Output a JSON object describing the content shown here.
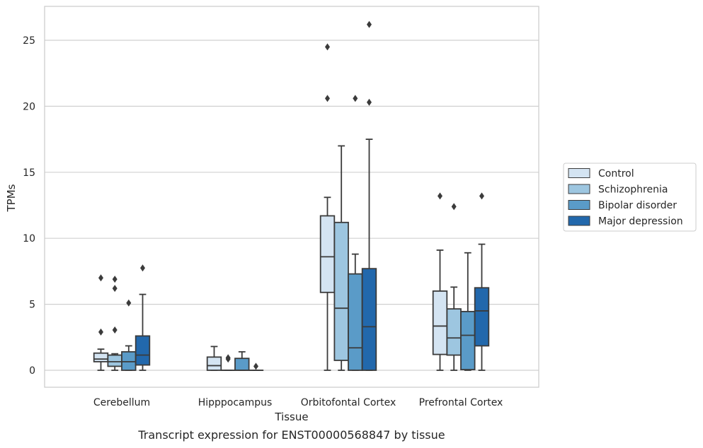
{
  "chart_data": {
    "type": "box",
    "title": "Transcript expression for ENST00000568847 by tissue",
    "xlabel": "Tissue",
    "ylabel": "TPMs",
    "ylim": [
      -1.2,
      27.3
    ],
    "yticks": [
      0,
      5,
      10,
      15,
      20,
      25
    ],
    "grid": "horizontal",
    "legend_position": "right",
    "categories": [
      "Cerebellum",
      "Hipppocampus",
      "Orbitofontal Cortex",
      "Prefrontal Cortex"
    ],
    "series": [
      {
        "name": "Control",
        "color": "#d4e4f2",
        "boxes": [
          {
            "whisker_low": 0.0,
            "q1": 0.65,
            "median": 0.85,
            "q3": 1.3,
            "whisker_high": 1.6,
            "outliers": [
              2.9,
              7.0
            ]
          },
          {
            "whisker_low": 0.0,
            "q1": 0.0,
            "median": 0.35,
            "q3": 1.0,
            "whisker_high": 1.8,
            "outliers": []
          },
          {
            "whisker_low": 0.0,
            "q1": 5.9,
            "median": 8.6,
            "q3": 11.7,
            "whisker_high": 13.1,
            "outliers": [
              20.6,
              24.5
            ]
          },
          {
            "whisker_low": 0.0,
            "q1": 1.2,
            "median": 3.35,
            "q3": 6.0,
            "whisker_high": 9.1,
            "outliers": [
              13.2
            ]
          }
        ]
      },
      {
        "name": "Schizophrenia",
        "color": "#9dc6e0",
        "boxes": [
          {
            "whisker_low": 0.0,
            "q1": 0.3,
            "median": 0.65,
            "q3": 1.15,
            "whisker_high": 1.25,
            "outliers": [
              3.05,
              6.2,
              6.9
            ]
          },
          {
            "whisker_low": 0.0,
            "q1": 0.0,
            "median": 0.0,
            "q3": 0.0,
            "whisker_high": 0.0,
            "outliers": [
              0.85,
              0.95
            ]
          },
          {
            "whisker_low": 0.0,
            "q1": 0.75,
            "median": 4.7,
            "q3": 11.2,
            "whisker_high": 17.0,
            "outliers": []
          },
          {
            "whisker_low": 0.0,
            "q1": 1.15,
            "median": 2.45,
            "q3": 4.65,
            "whisker_high": 6.3,
            "outliers": [
              12.4
            ]
          }
        ]
      },
      {
        "name": "Bipolar disorder",
        "color": "#5a9bc8",
        "boxes": [
          {
            "whisker_low": 0.0,
            "q1": 0.0,
            "median": 0.65,
            "q3": 1.4,
            "whisker_high": 1.85,
            "outliers": [
              5.1
            ]
          },
          {
            "whisker_low": 0.0,
            "q1": 0.0,
            "median": 0.0,
            "q3": 0.9,
            "whisker_high": 1.4,
            "outliers": []
          },
          {
            "whisker_low": 0.0,
            "q1": 0.0,
            "median": 1.7,
            "q3": 7.3,
            "whisker_high": 8.8,
            "outliers": [
              20.6
            ]
          },
          {
            "whisker_low": 0.0,
            "q1": 0.05,
            "median": 2.65,
            "q3": 4.45,
            "whisker_high": 8.9,
            "outliers": []
          }
        ]
      },
      {
        "name": "Major depression",
        "color": "#2268ac",
        "boxes": [
          {
            "whisker_low": 0.0,
            "q1": 0.4,
            "median": 1.15,
            "q3": 2.6,
            "whisker_high": 5.75,
            "outliers": [
              7.75
            ]
          },
          {
            "whisker_low": 0.0,
            "q1": 0.0,
            "median": 0.0,
            "q3": 0.0,
            "whisker_high": 0.0,
            "outliers": [
              0.3
            ]
          },
          {
            "whisker_low": 0.0,
            "q1": 0.0,
            "median": 3.3,
            "q3": 7.7,
            "whisker_high": 17.5,
            "outliers": [
              20.3,
              26.2
            ]
          },
          {
            "whisker_low": 0.0,
            "q1": 1.85,
            "median": 4.5,
            "q3": 6.25,
            "whisker_high": 9.55,
            "outliers": [
              13.2
            ]
          }
        ]
      }
    ]
  }
}
